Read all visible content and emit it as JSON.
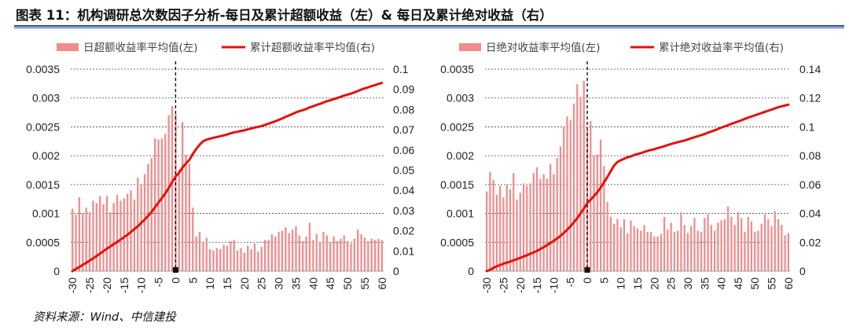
{
  "figure": {
    "label": "图表 11：",
    "title": "机构调研总次数因子分析-每日及累计超额收益（左）& 每日及累计绝对收益（右）",
    "source": "资料来源：Wind、中信建投",
    "colors": {
      "bar": "#f28b8b",
      "line": "#e3120b",
      "rule": "#1f4e9a",
      "grid": "#444444"
    }
  },
  "chart_data": [
    {
      "type": "bar+line",
      "title": "",
      "xlabel": "",
      "ylabel": "",
      "y2label": "",
      "x": [
        -30,
        -29,
        -28,
        -27,
        -26,
        -25,
        -24,
        -23,
        -22,
        -21,
        -20,
        -19,
        -18,
        -17,
        -16,
        -15,
        -14,
        -13,
        -12,
        -11,
        -10,
        -9,
        -8,
        -7,
        -6,
        -5,
        -4,
        -3,
        -2,
        -1,
        0,
        1,
        2,
        3,
        4,
        5,
        6,
        7,
        8,
        9,
        10,
        11,
        12,
        13,
        14,
        15,
        16,
        17,
        18,
        19,
        20,
        21,
        22,
        23,
        24,
        25,
        26,
        27,
        28,
        29,
        30,
        31,
        32,
        33,
        34,
        35,
        36,
        37,
        38,
        39,
        40,
        41,
        42,
        43,
        44,
        45,
        46,
        47,
        48,
        49,
        50,
        51,
        52,
        53,
        54,
        55,
        56,
        57,
        58,
        59,
        60
      ],
      "x_ticks": [
        -30,
        -25,
        -20,
        -15,
        -10,
        -5,
        0,
        5,
        10,
        15,
        20,
        25,
        30,
        35,
        40,
        45,
        50,
        55,
        60
      ],
      "ylim": [
        0,
        0.0035
      ],
      "y_ticks": [
        0,
        0.0005,
        0.001,
        0.0015,
        0.002,
        0.0025,
        0.003,
        0.0035
      ],
      "y_tick_labels": [
        "0",
        "0.0005",
        "0.001",
        "0.0015",
        "0.002",
        "0.0025",
        "0.003",
        "0.0035"
      ],
      "y2lim": [
        0,
        0.1
      ],
      "y2_ticks": [
        0,
        0.01,
        0.02,
        0.03,
        0.04,
        0.05,
        0.06,
        0.07,
        0.08,
        0.09,
        0.1
      ],
      "y2_tick_labels": [
        "0",
        "0.01",
        "0.02",
        "0.03",
        "0.04",
        "0.05",
        "0.06",
        "0.07",
        "0.08",
        "0.09",
        "0.1"
      ],
      "grid": true,
      "legend": {
        "placement": "top",
        "bar_label": "日超额收益率平均值(左)",
        "line_label": "累计超额收益率平均值(右)"
      },
      "vline_x": 0,
      "series": [
        {
          "name": "日超额收益率平均值(左)",
          "kind": "bar",
          "axis": "left",
          "values": [
            0.00108,
            0.00098,
            0.00128,
            0.001,
            0.0011,
            0.00102,
            0.00122,
            0.00118,
            0.0013,
            0.00116,
            0.0013,
            0.00102,
            0.00118,
            0.00132,
            0.00122,
            0.00126,
            0.00134,
            0.0014,
            0.00124,
            0.00162,
            0.0015,
            0.00168,
            0.00186,
            0.00196,
            0.0023,
            0.00228,
            0.0023,
            0.00238,
            0.0027,
            0.00286,
            0.00272,
            0.00176,
            0.00258,
            0.00202,
            0.00186,
            0.0011,
            0.0006,
            0.00068,
            0.0005,
            0.00058,
            0.00038,
            0.00036,
            0.0004,
            0.00038,
            0.00046,
            0.00044,
            0.00052,
            0.00054,
            0.00036,
            0.0004,
            0.00032,
            0.00044,
            0.00038,
            0.00048,
            0.00034,
            0.00042,
            0.00054,
            0.00054,
            0.00064,
            0.0006,
            0.00068,
            0.0007,
            0.00076,
            0.00066,
            0.00072,
            0.00078,
            0.00062,
            0.00052,
            0.0006,
            0.00084,
            0.00054,
            0.00064,
            0.0005,
            0.00068,
            0.00062,
            0.0005,
            0.0006,
            0.00052,
            0.00056,
            0.00062,
            0.00052,
            0.00048,
            0.00056,
            0.00072,
            0.00064,
            0.00058,
            0.00052,
            0.00056,
            0.00054,
            0.00056,
            0.00054
          ]
        },
        {
          "name": "累计超额收益率平均值(右)",
          "kind": "line",
          "axis": "right",
          "values": [
            0.0,
            0.0011,
            0.002,
            0.0031,
            0.0041,
            0.0052,
            0.0063,
            0.0075,
            0.0086,
            0.0099,
            0.0111,
            0.0122,
            0.0133,
            0.0145,
            0.0156,
            0.0168,
            0.018,
            0.0194,
            0.0208,
            0.0222,
            0.0239,
            0.0255,
            0.0274,
            0.0293,
            0.0316,
            0.0339,
            0.0362,
            0.0385,
            0.0412,
            0.0441,
            0.0469,
            0.0487,
            0.0513,
            0.0533,
            0.0551,
            0.058,
            0.0605,
            0.0626,
            0.0643,
            0.0651,
            0.0656,
            0.066,
            0.0664,
            0.0668,
            0.0672,
            0.0677,
            0.0682,
            0.0687,
            0.069,
            0.0694,
            0.0697,
            0.0702,
            0.0706,
            0.0711,
            0.0714,
            0.0718,
            0.0724,
            0.073,
            0.0736,
            0.0742,
            0.0749,
            0.0756,
            0.0764,
            0.0771,
            0.0778,
            0.0786,
            0.0792,
            0.0797,
            0.0803,
            0.0811,
            0.0816,
            0.0823,
            0.0828,
            0.0835,
            0.0841,
            0.0846,
            0.0852,
            0.0857,
            0.0863,
            0.0869,
            0.0874,
            0.0879,
            0.0885,
            0.0892,
            0.0899,
            0.0905,
            0.091,
            0.0916,
            0.0921,
            0.0927,
            0.0932
          ]
        }
      ]
    },
    {
      "type": "bar+line",
      "title": "",
      "xlabel": "",
      "ylabel": "",
      "y2label": "",
      "x": [
        -30,
        -29,
        -28,
        -27,
        -26,
        -25,
        -24,
        -23,
        -22,
        -21,
        -20,
        -19,
        -18,
        -17,
        -16,
        -15,
        -14,
        -13,
        -12,
        -11,
        -10,
        -9,
        -8,
        -7,
        -6,
        -5,
        -4,
        -3,
        -2,
        -1,
        0,
        1,
        2,
        3,
        4,
        5,
        6,
        7,
        8,
        9,
        10,
        11,
        12,
        13,
        14,
        15,
        16,
        17,
        18,
        19,
        20,
        21,
        22,
        23,
        24,
        25,
        26,
        27,
        28,
        29,
        30,
        31,
        32,
        33,
        34,
        35,
        36,
        37,
        38,
        39,
        40,
        41,
        42,
        43,
        44,
        45,
        46,
        47,
        48,
        49,
        50,
        51,
        52,
        53,
        54,
        55,
        56,
        57,
        58,
        59,
        60
      ],
      "x_ticks": [
        -30,
        -25,
        -20,
        -15,
        -10,
        -5,
        0,
        5,
        10,
        15,
        20,
        25,
        30,
        35,
        40,
        45,
        50,
        55,
        60
      ],
      "ylim": [
        0,
        0.0035
      ],
      "y_ticks": [
        0,
        0.0005,
        0.001,
        0.0015,
        0.002,
        0.0025,
        0.003,
        0.0035
      ],
      "y_tick_labels": [
        "0",
        "0.0005",
        "0.001",
        "0.0015",
        "0.002",
        "0.0025",
        "0.003",
        "0.0035"
      ],
      "y2lim": [
        0,
        0.14
      ],
      "y2_ticks": [
        0,
        0.02,
        0.04,
        0.06,
        0.08,
        0.1,
        0.12,
        0.14
      ],
      "y2_tick_labels": [
        "0",
        "0.02",
        "0.04",
        "0.06",
        "0.08",
        "0.1",
        "0.12",
        "0.14"
      ],
      "grid": true,
      "legend": {
        "placement": "top",
        "bar_label": "日绝对收益率平均值(左)",
        "line_label": "累计绝对收益率平均值(右)"
      },
      "vline_x": 0,
      "series": [
        {
          "name": "日绝对收益率平均值(左)",
          "kind": "bar",
          "axis": "left",
          "values": [
            0.00138,
            0.00172,
            0.00158,
            0.00132,
            0.00148,
            0.00128,
            0.0015,
            0.00142,
            0.0017,
            0.00124,
            0.00136,
            0.00152,
            0.00148,
            0.00152,
            0.0017,
            0.0018,
            0.0016,
            0.00168,
            0.0016,
            0.00186,
            0.00168,
            0.00196,
            0.00216,
            0.0025,
            0.00268,
            0.00262,
            0.0029,
            0.00324,
            0.00302,
            0.0033,
            0.00244,
            0.0026,
            0.002,
            0.00202,
            0.00228,
            0.00182,
            0.0012,
            0.00094,
            0.00082,
            0.0009,
            0.00076,
            0.0009,
            0.00066,
            0.00088,
            0.00078,
            0.00074,
            0.0007,
            0.0008,
            0.00068,
            0.00068,
            0.0006,
            0.0006,
            0.00064,
            0.00094,
            0.00072,
            0.00084,
            0.00068,
            0.0007,
            0.00102,
            0.0008,
            0.00066,
            0.00078,
            0.00092,
            0.0007,
            0.00068,
            0.00092,
            0.00098,
            0.0008,
            0.0007,
            0.00084,
            0.00088,
            0.0009,
            0.00112,
            0.00094,
            0.0008,
            0.00102,
            0.00092,
            0.00068,
            0.00094,
            0.00086,
            0.00068,
            0.0007,
            0.00082,
            0.00098,
            0.0009,
            0.00078,
            0.00104,
            0.0009,
            0.0008,
            0.00062,
            0.00066
          ]
        },
        {
          "name": "累计绝对收益率平均值(右)",
          "kind": "line",
          "axis": "right",
          "values": [
            0.0,
            0.0009,
            0.0022,
            0.0034,
            0.0042,
            0.0052,
            0.0059,
            0.0066,
            0.0075,
            0.0083,
            0.0092,
            0.0101,
            0.011,
            0.012,
            0.013,
            0.014,
            0.0153,
            0.0166,
            0.018,
            0.0195,
            0.021,
            0.0226,
            0.0244,
            0.0265,
            0.0287,
            0.0311,
            0.0338,
            0.0367,
            0.04,
            0.0434,
            0.0472,
            0.0495,
            0.052,
            0.0547,
            0.0579,
            0.0615,
            0.0652,
            0.0693,
            0.0732,
            0.0756,
            0.0769,
            0.0779,
            0.0789,
            0.0795,
            0.0805,
            0.0812,
            0.0818,
            0.0826,
            0.0834,
            0.084,
            0.0845,
            0.0853,
            0.0859,
            0.0866,
            0.0874,
            0.0881,
            0.0888,
            0.0894,
            0.09,
            0.0905,
            0.0913,
            0.0921,
            0.0928,
            0.0935,
            0.0943,
            0.095,
            0.096,
            0.0968,
            0.0976,
            0.0985,
            0.0995,
            0.1003,
            0.1012,
            0.1021,
            0.1029,
            0.1037,
            0.1046,
            0.1055,
            0.1064,
            0.1072,
            0.108,
            0.1088,
            0.1096,
            0.1104,
            0.1112,
            0.112,
            0.1128,
            0.1136,
            0.1142,
            0.1148,
            0.1154
          ]
        }
      ]
    }
  ]
}
